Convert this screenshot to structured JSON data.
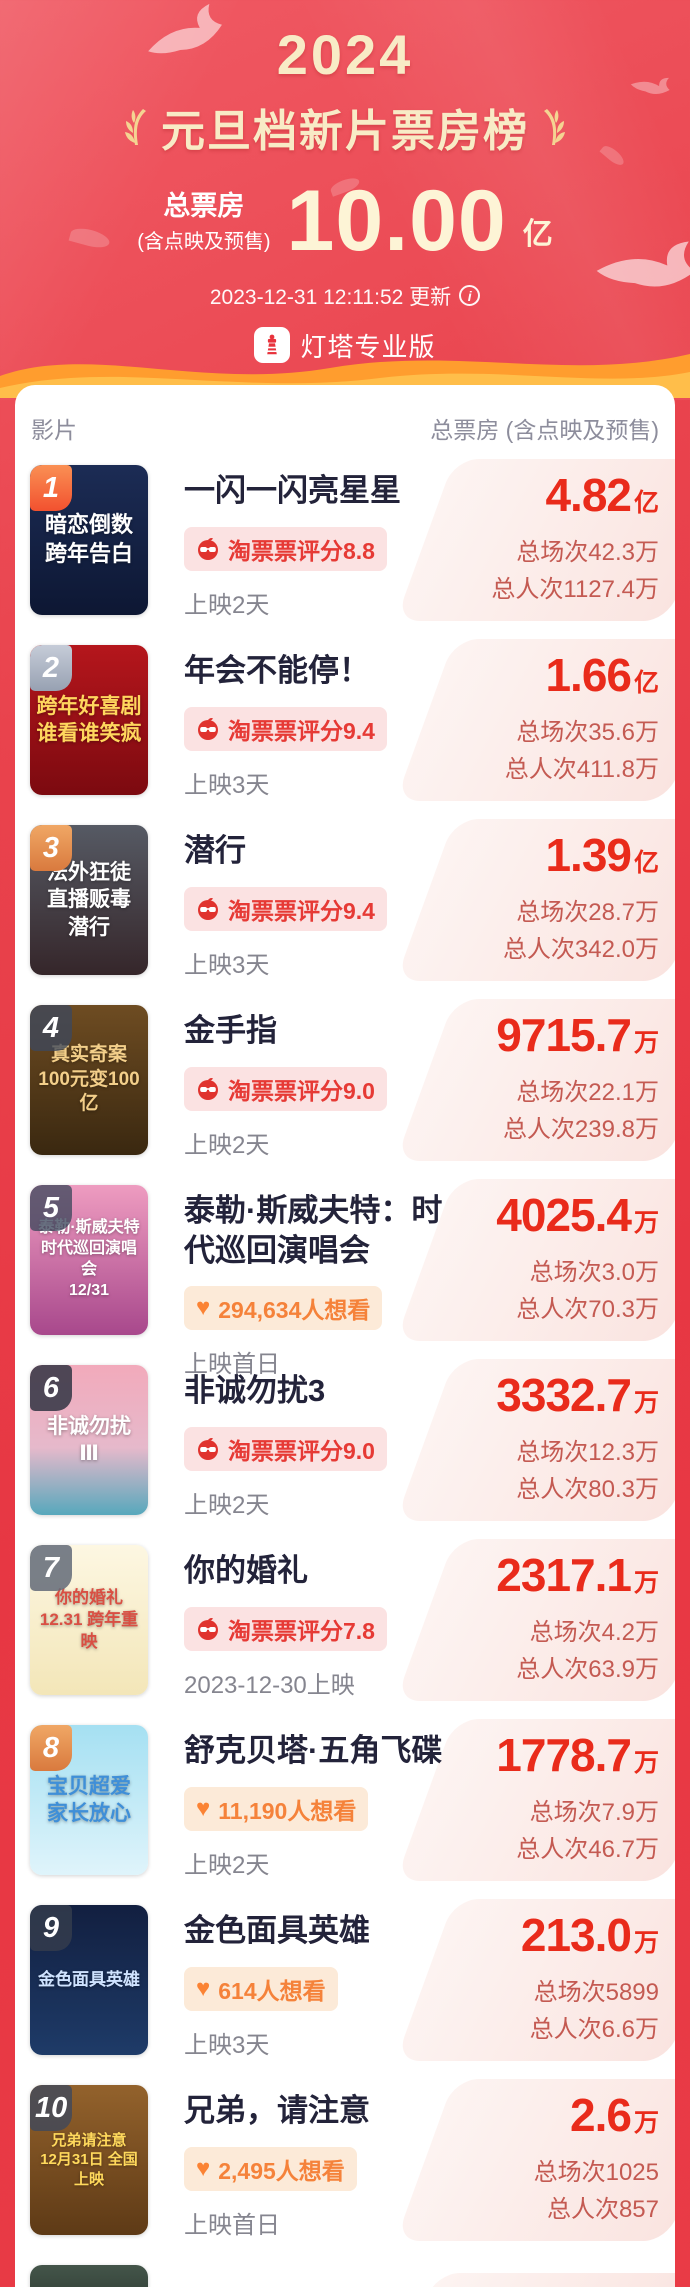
{
  "header": {
    "year": "2024",
    "title": "元旦档新片票房榜",
    "total_label": "总票房",
    "total_sublabel": "(含点映及预售)",
    "total_value": "10.00",
    "total_unit": "亿",
    "updated": "2023-12-31 12:11:52 更新",
    "brand": "灯塔专业版"
  },
  "list_header": {
    "left": "影片",
    "right": "总票房 (含点映及预售)"
  },
  "icons": {
    "heart": "♥",
    "info": "i"
  },
  "colors": {
    "background_red": "#e73743",
    "gold_text": "#f8ebc6",
    "box_office_red": "#e92b1b",
    "stat_red": "#c45a52",
    "rating_badge_bg": "#fbe2e2",
    "rating_badge_text": "#e63a35",
    "want_badge_bg": "#fcead8",
    "want_badge_text": "#f5823a"
  },
  "movies": [
    {
      "rank": "1",
      "title": "一闪一闪亮星星",
      "badge": {
        "type": "rating",
        "text": "淘票票评分8.8"
      },
      "release": "上映2天",
      "box_value": "4.82",
      "box_unit": "亿",
      "sessions": "总场次42.3万",
      "admissions": "总人次1127.4万",
      "rank_bg": "linear-gradient(180deg,#fa9054,#f2512f)",
      "poster": {
        "bg": "linear-gradient(180deg,#1c2c55,#0d1733)",
        "fg": "#ffffff",
        "size": 22,
        "lines": [
          "暗恋倒数",
          "跨年告白"
        ]
      }
    },
    {
      "rank": "2",
      "title": "年会不能停！",
      "badge": {
        "type": "rating",
        "text": "淘票票评分9.4"
      },
      "release": "上映3天",
      "box_value": "1.66",
      "box_unit": "亿",
      "sessions": "总场次35.6万",
      "admissions": "总人次411.8万",
      "rank_bg": "linear-gradient(180deg,#c6ccd8,#97a1b2)",
      "poster": {
        "bg": "linear-gradient(180deg,#b5161c,#7c0a10)",
        "fg": "#ffd75e",
        "size": 21,
        "lines": [
          "跨年好喜剧",
          "谁看谁笑疯"
        ]
      }
    },
    {
      "rank": "3",
      "title": "潜行",
      "badge": {
        "type": "rating",
        "text": "淘票票评分9.4"
      },
      "release": "上映3天",
      "box_value": "1.39",
      "box_unit": "亿",
      "sessions": "总场次28.7万",
      "admissions": "总人次342.0万",
      "rank_bg": "linear-gradient(180deg,#f0a765,#d97a3e)",
      "poster": {
        "bg": "linear-gradient(180deg,#565a64,#35262a)",
        "fg": "#ffffff",
        "size": 21,
        "lines": [
          "法外狂徒",
          "直播贩毒",
          "潜行"
        ]
      }
    },
    {
      "rank": "4",
      "title": "金手指",
      "badge": {
        "type": "rating",
        "text": "淘票票评分9.0"
      },
      "release": "上映2天",
      "box_value": "9715.7",
      "box_unit": "万",
      "sessions": "总场次22.1万",
      "admissions": "总人次239.8万",
      "rank_bg": "rgba(62,72,92,0.78)",
      "poster": {
        "bg": "linear-gradient(180deg,#6e4c22,#3a2810)",
        "fg": "#f3cf8a",
        "size": 19,
        "lines": [
          "真实奇案",
          "100元变100亿"
        ]
      }
    },
    {
      "rank": "5",
      "title": "泰勒·斯威夫特：时代巡回演唱会",
      "badge": {
        "type": "want",
        "text": "294,634人想看"
      },
      "release": "上映首日",
      "box_value": "4025.4",
      "box_unit": "万",
      "sessions": "总场次3.0万",
      "admissions": "总人次70.3万",
      "rank_bg": "rgba(62,72,92,0.78)",
      "poster": {
        "bg": "linear-gradient(180deg,#ee9cc0,#a8488c)",
        "fg": "#ffffff",
        "size": 16,
        "lines": [
          "泰勒·斯威夫特",
          "时代巡回演唱会",
          "12/31"
        ]
      }
    },
    {
      "rank": "6",
      "title": "非诚勿扰3",
      "badge": {
        "type": "rating",
        "text": "淘票票评分9.0"
      },
      "release": "上映2天",
      "box_value": "3332.7",
      "box_unit": "万",
      "sessions": "总场次12.3万",
      "admissions": "总人次80.3万",
      "rank_bg": "rgba(42,48,62,0.82)",
      "poster": {
        "bg": "linear-gradient(180deg,#f2aabb 0%,#e6b9cb 55%,#57a8bc 100%)",
        "fg": "#ffffff",
        "size": 21,
        "lines": [
          "非诚勿扰",
          "Ⅲ"
        ]
      }
    },
    {
      "rank": "7",
      "title": "你的婚礼",
      "badge": {
        "type": "rating",
        "text": "淘票票评分7.8"
      },
      "release": "2023-12-30上映",
      "box_value": "2317.1",
      "box_unit": "万",
      "sessions": "总场次4.2万",
      "admissions": "总人次63.9万",
      "rank_bg": "rgba(98,106,120,0.85)",
      "poster": {
        "bg": "linear-gradient(180deg,#fdf7e2,#f3e6b8)",
        "fg": "#d94f43",
        "size": 17,
        "lines": [
          "你的婚礼",
          "12.31 跨年重映"
        ]
      }
    },
    {
      "rank": "8",
      "title": "舒克贝塔·五角飞碟",
      "badge": {
        "type": "want",
        "text": "11,190人想看"
      },
      "release": "上映2天",
      "box_value": "1778.7",
      "box_unit": "万",
      "sessions": "总场次7.9万",
      "admissions": "总人次46.7万",
      "rank_bg": "linear-gradient(180deg,#f0a765,#d97a3e)",
      "poster": {
        "bg": "linear-gradient(180deg,#a5e0f2,#dff4fb)",
        "fg": "#3f8fd8",
        "size": 21,
        "lines": [
          "宝贝超爱",
          "家长放心"
        ]
      }
    },
    {
      "rank": "9",
      "title": "金色面具英雄",
      "badge": {
        "type": "want",
        "text": "614人想看"
      },
      "release": "上映3天",
      "box_value": "213.0",
      "box_unit": "万",
      "sessions": "总场次5899",
      "admissions": "总人次6.6万",
      "rank_bg": "rgba(52,60,76,0.85)",
      "poster": {
        "bg": "linear-gradient(180deg,#121f40,#1e3b68)",
        "fg": "#cfe3ff",
        "size": 17,
        "lines": [
          "金色面具英雄"
        ]
      }
    },
    {
      "rank": "10",
      "title": "兄弟，请注意",
      "badge": {
        "type": "want",
        "text": "2,495人想看"
      },
      "release": "上映首日",
      "box_value": "2.6",
      "box_unit": "万",
      "sessions": "总场次1025",
      "admissions": "总人次857",
      "rank_bg": "rgba(62,72,92,0.80)",
      "poster": {
        "bg": "linear-gradient(180deg,#93622c,#5e3a16)",
        "fg": "#ffd95c",
        "size": 15,
        "lines": [
          "兄弟请注意",
          "12月31日 全国上映"
        ]
      }
    }
  ]
}
